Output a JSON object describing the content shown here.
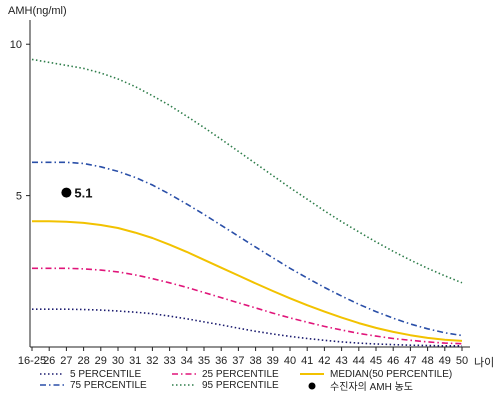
{
  "chart_data": {
    "type": "line",
    "ylabel": "AMH(ng/ml)",
    "xlabel": "나이",
    "x": [
      "16-25",
      "26",
      "27",
      "28",
      "29",
      "30",
      "31",
      "32",
      "33",
      "34",
      "35",
      "36",
      "37",
      "38",
      "39",
      "40",
      "41",
      "42",
      "43",
      "44",
      "45",
      "46",
      "47",
      "48",
      "49",
      "50"
    ],
    "yticks": [
      5,
      10
    ],
    "ylim": [
      0,
      10.8
    ],
    "grid": false,
    "legend_position": "bottom",
    "series": [
      {
        "name": "5 PERCENTILE",
        "color": "#1a1a6e",
        "dash": "dotted",
        "values": [
          1.25,
          1.25,
          1.25,
          1.24,
          1.22,
          1.19,
          1.15,
          1.1,
          1.02,
          0.93,
          0.83,
          0.73,
          0.62,
          0.52,
          0.43,
          0.35,
          0.28,
          0.22,
          0.17,
          0.13,
          0.1,
          0.08,
          0.06,
          0.05,
          0.04,
          0.04
        ]
      },
      {
        "name": "25 PERCENTILE",
        "color": "#e0157a",
        "dash": "dashdot",
        "values": [
          2.6,
          2.6,
          2.6,
          2.58,
          2.54,
          2.48,
          2.38,
          2.26,
          2.12,
          1.97,
          1.8,
          1.63,
          1.46,
          1.29,
          1.12,
          0.96,
          0.82,
          0.68,
          0.56,
          0.45,
          0.36,
          0.28,
          0.22,
          0.17,
          0.13,
          0.11
        ]
      },
      {
        "name": "MEDIAN(50 PERCENTILE)",
        "color": "#f2c200",
        "dash": "solid",
        "values": [
          4.15,
          4.15,
          4.14,
          4.1,
          4.03,
          3.93,
          3.78,
          3.6,
          3.38,
          3.14,
          2.88,
          2.62,
          2.36,
          2.1,
          1.85,
          1.61,
          1.38,
          1.17,
          0.97,
          0.79,
          0.63,
          0.5,
          0.39,
          0.3,
          0.24,
          0.2
        ]
      },
      {
        "name": "75 PERCENTILE",
        "color": "#2a4fa8",
        "dash": "dashdot",
        "values": [
          6.1,
          6.1,
          6.1,
          6.06,
          5.95,
          5.8,
          5.6,
          5.35,
          5.05,
          4.72,
          4.38,
          4.02,
          3.66,
          3.3,
          2.95,
          2.6,
          2.28,
          1.97,
          1.68,
          1.41,
          1.17,
          0.95,
          0.76,
          0.6,
          0.47,
          0.38
        ]
      },
      {
        "name": "95 PERCENTILE",
        "color": "#2e7d4a",
        "dash": "dotted",
        "values": [
          9.5,
          9.4,
          9.3,
          9.2,
          9.05,
          8.85,
          8.6,
          8.3,
          7.98,
          7.62,
          7.25,
          6.86,
          6.46,
          6.06,
          5.66,
          5.26,
          4.88,
          4.5,
          4.14,
          3.8,
          3.47,
          3.16,
          2.87,
          2.6,
          2.35,
          2.12
        ]
      }
    ],
    "marker": {
      "label": "수진자의 AMH 농도",
      "x": "27",
      "y": 5.1,
      "text": "5.1",
      "color": "#000000"
    }
  }
}
